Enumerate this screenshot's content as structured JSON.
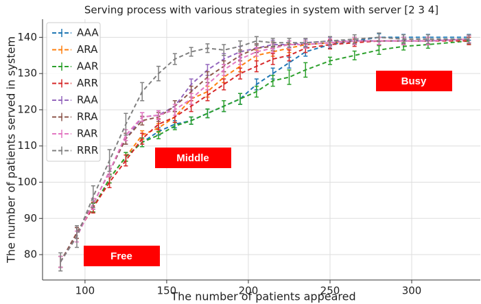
{
  "chart_data": {
    "type": "errorbar-line",
    "title": "Serving process with various strategies in system with server [2 3 4]",
    "x_label": "The number of patients appeared",
    "y_label": "The number of patients served in system",
    "x": [
      85,
      95,
      105,
      115,
      125,
      135,
      145,
      155,
      165,
      175,
      185,
      195,
      205,
      215,
      225,
      235,
      250,
      265,
      280,
      295,
      310,
      335
    ],
    "xlim": [
      74,
      342
    ],
    "ylim": [
      73,
      145
    ],
    "xticks": [
      100,
      150,
      200,
      250,
      300
    ],
    "yticks": [
      80,
      90,
      100,
      110,
      120,
      130,
      140
    ],
    "grid": true,
    "legend": "upper left",
    "annotations": [
      "Free",
      "Middle",
      "Busy"
    ],
    "annotation_color": "#ff0000",
    "series": [
      {
        "name": "AAA",
        "color": "#1f77b4",
        "values": [
          78,
          86,
          93,
          101,
          107,
          111,
          114,
          116,
          117,
          119,
          121,
          123,
          127,
          130,
          133,
          136,
          138,
          139,
          140,
          140,
          140,
          140
        ],
        "errors": [
          1.5,
          1.5,
          1.2,
          1.2,
          1.2,
          1.2,
          1,
          1,
          1,
          1.2,
          1.5,
          1.5,
          1.5,
          1.5,
          1.5,
          1.2,
          1,
          1,
          1,
          0.8,
          0.8,
          0.8
        ]
      },
      {
        "name": "ARA",
        "color": "#ff7f0e",
        "values": [
          78,
          86,
          93,
          101,
          107,
          113,
          115,
          118,
          123,
          125,
          129,
          132,
          135,
          136,
          137,
          138,
          138.5,
          139,
          139,
          139,
          139,
          139.5
        ],
        "errors": [
          1.5,
          1.5,
          1.2,
          1.2,
          1.2,
          1.2,
          1.2,
          1.5,
          1.5,
          1.5,
          1.5,
          1.5,
          1.5,
          1.2,
          1.2,
          1,
          1,
          1,
          1,
          1,
          1,
          1
        ]
      },
      {
        "name": "AAR",
        "color": "#2ca02c",
        "values": [
          78,
          86,
          93,
          101,
          107,
          111,
          113,
          115.5,
          117,
          119,
          121,
          123,
          125,
          128,
          129,
          131,
          133.5,
          135,
          136.5,
          137.5,
          138,
          139
        ],
        "errors": [
          1.5,
          1.5,
          1.2,
          1.2,
          1.2,
          1.2,
          1,
          1,
          1,
          1.2,
          1.5,
          1.5,
          1.5,
          1.5,
          2,
          2,
          1,
          1.2,
          1.2,
          1,
          1,
          1
        ]
      },
      {
        "name": "ARR",
        "color": "#d62728",
        "values": [
          78,
          86,
          93,
          100,
          106,
          112,
          116,
          118,
          121,
          124,
          127,
          130,
          132,
          134,
          135,
          137,
          138,
          138.5,
          139,
          139,
          139,
          139
        ],
        "errors": [
          1.5,
          1.5,
          1.5,
          1.5,
          1.5,
          1.5,
          1.5,
          1.5,
          1.5,
          1.5,
          1.5,
          1.5,
          1.5,
          1.5,
          1.5,
          1.2,
          1.2,
          1,
          1,
          1,
          1,
          1
        ]
      },
      {
        "name": "RAA",
        "color": "#9467bd",
        "values": [
          78,
          86,
          94,
          103,
          112,
          118,
          118.5,
          121,
          127,
          131,
          134,
          136,
          137,
          138,
          138,
          138.5,
          139,
          139,
          139,
          139,
          139,
          139.5
        ],
        "errors": [
          1.5,
          1.5,
          1.5,
          1.5,
          1.5,
          1.2,
          1.2,
          1.5,
          1.5,
          1.5,
          1.5,
          1.5,
          1.2,
          1.2,
          1,
          1,
          1,
          1,
          1,
          1,
          1,
          1
        ]
      },
      {
        "name": "RRA",
        "color": "#8c564b",
        "values": [
          78,
          86,
          94,
          103,
          112,
          117,
          118,
          121,
          125,
          129,
          132,
          135,
          137,
          137.5,
          138,
          138,
          138.5,
          139,
          139,
          139,
          139,
          139.5
        ],
        "errors": [
          1.5,
          1.5,
          1.5,
          1.5,
          1.5,
          1.2,
          1.2,
          1.5,
          1.5,
          1.5,
          1.5,
          1.5,
          1.2,
          1.2,
          1,
          1,
          1,
          1,
          1,
          1,
          1,
          1
        ]
      },
      {
        "name": "RAR",
        "color": "#e377c2",
        "values": [
          78,
          85,
          94,
          103,
          113,
          118,
          118.5,
          120,
          123,
          127,
          131,
          134,
          136,
          137,
          138,
          138,
          138.5,
          139,
          139,
          139,
          139,
          139.5
        ],
        "errors": [
          1.5,
          1.5,
          1.5,
          1.5,
          1.5,
          1.2,
          1.2,
          1.5,
          1.5,
          1.5,
          1.5,
          1.5,
          1.2,
          1.2,
          1,
          1,
          1,
          1,
          1,
          1,
          1,
          1
        ]
      },
      {
        "name": "RRR",
        "color": "#7f7f7f",
        "values": [
          78,
          85,
          96,
          106,
          116,
          125,
          130,
          134,
          136,
          137,
          136.5,
          137.5,
          139,
          138.5,
          138.5,
          138.5,
          139,
          139.5,
          140,
          139.5,
          139.5,
          139.5
        ],
        "errors": [
          2.5,
          3,
          3,
          3,
          3,
          2.5,
          2,
          1.5,
          1.2,
          1.2,
          1.5,
          1.5,
          1.2,
          1.2,
          1.2,
          1.2,
          1.2,
          1.2,
          1.2,
          1.2,
          1.2,
          1.2
        ]
      }
    ]
  }
}
